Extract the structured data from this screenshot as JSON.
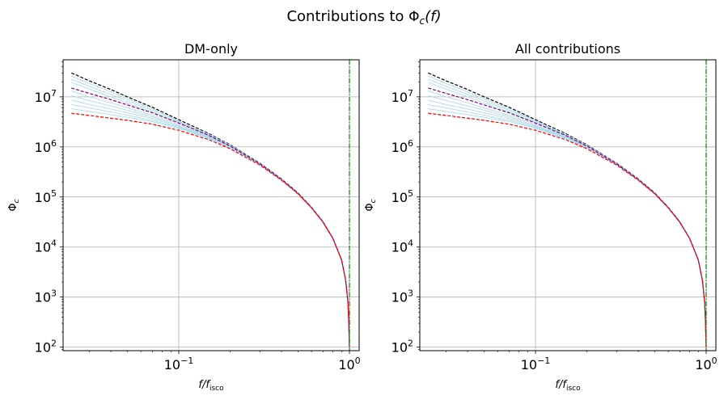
{
  "figure": {
    "title_prefix": "Contributions to ",
    "title_symbol": "Φ",
    "title_sub": "c",
    "title_arg": "(f)"
  },
  "chart_data": [
    {
      "type": "line",
      "title": "DM-only",
      "xlabel": {
        "num": "f",
        "den": "f",
        "den_sub": "isco"
      },
      "ylabel": {
        "symbol": "Φ",
        "sub": "c"
      },
      "xscale": "log",
      "yscale": "log",
      "xlim": [
        0.021,
        1.14
      ],
      "ylim": [
        85,
        55000000
      ],
      "grid": true,
      "x_ticks": [
        {
          "value": 0.1,
          "base": "10",
          "exp": "−1"
        },
        {
          "value": 1,
          "base": "10",
          "exp": "0"
        }
      ],
      "y_ticks": [
        {
          "value": 100,
          "base": "10",
          "exp": "2"
        },
        {
          "value": 1000,
          "base": "10",
          "exp": "3"
        },
        {
          "value": 10000,
          "base": "10",
          "exp": "4"
        },
        {
          "value": 100000,
          "base": "10",
          "exp": "5"
        },
        {
          "value": 1000000,
          "base": "10",
          "exp": "6"
        },
        {
          "value": 10000000,
          "base": "10",
          "exp": "7"
        }
      ],
      "x": [
        0.0235,
        0.03,
        0.04,
        0.05,
        0.07,
        0.1,
        0.15,
        0.2,
        0.3,
        0.4,
        0.5,
        0.6,
        0.7,
        0.8,
        0.9,
        0.95,
        0.98,
        0.99,
        1.0
      ],
      "series": [
        {
          "style": "dashed",
          "color": "#000000",
          "values": [
            30000000,
            20800000,
            14000000,
            10000000,
            6200000,
            3500000,
            1850000,
            1100000,
            470000,
            230000,
            120000,
            62000,
            32000,
            15000,
            5500,
            2200,
            800,
            350,
            100
          ]
        },
        {
          "style": "solid",
          "color": "#add8e6",
          "values": [
            26200000,
            18400000,
            12600000,
            9150000,
            5800000,
            3350000,
            1800000,
            1080000,
            465000,
            228000,
            119000,
            61600,
            31900,
            14950,
            5490,
            2198,
            799,
            350,
            100
          ]
        },
        {
          "style": "solid",
          "color": "#add8e6",
          "values": [
            22600000,
            16100000,
            11200000,
            8300000,
            5400000,
            3200000,
            1750000,
            1060000,
            460000,
            226000,
            118500,
            61400,
            31800,
            14920,
            5485,
            2197,
            799,
            350,
            100
          ]
        },
        {
          "style": "solid",
          "color": "#add8e6",
          "values": [
            19600000,
            14200000,
            10000000,
            7500000,
            5000000,
            3050000,
            1700000,
            1040000,
            455000,
            224000,
            118000,
            61200,
            31700,
            14900,
            5480,
            2196,
            799,
            350,
            100
          ]
        },
        {
          "style": "solid",
          "color": "#add8e6",
          "values": [
            13100000,
            10000000,
            7600000,
            6000000,
            4300000,
            2800000,
            1620000,
            1010000,
            448000,
            222000,
            117200,
            60900,
            31600,
            14870,
            5475,
            2195,
            798,
            350,
            100
          ]
        },
        {
          "style": "solid",
          "color": "#add8e6",
          "values": [
            10600000,
            8400000,
            6600000,
            5400000,
            4000000,
            2650000,
            1580000,
            995000,
            445000,
            221000,
            116800,
            60800,
            31550,
            14860,
            5472,
            2194,
            798,
            350,
            100
          ]
        },
        {
          "style": "solid",
          "color": "#add8e6",
          "values": [
            8600000,
            7000000,
            5700000,
            4800000,
            3700000,
            2550000,
            1540000,
            980000,
            442000,
            220000,
            116500,
            60700,
            31500,
            14850,
            5470,
            2193,
            798,
            350,
            100
          ]
        },
        {
          "style": "solid",
          "color": "#add8e6",
          "values": [
            7000000,
            6000000,
            5000000,
            4300000,
            3400000,
            2450000,
            1510000,
            970000,
            440000,
            219500,
            116300,
            60600,
            31480,
            14840,
            5468,
            2192,
            798,
            350,
            100
          ]
        },
        {
          "style": "solid",
          "color": "#add8e6",
          "values": [
            5800000,
            5100000,
            4400000,
            3900000,
            3200000,
            2350000,
            1480000,
            960000,
            438000,
            219000,
            116100,
            60550,
            31460,
            14835,
            5466,
            2192,
            798,
            350,
            100
          ]
        },
        {
          "style": "dashed",
          "color": "#800080",
          "values": [
            15000000,
            11700000,
            8800000,
            6900000,
            4800000,
            3000000,
            1700000,
            1040000,
            455000,
            224000,
            118000,
            61200,
            31700,
            14900,
            5480,
            2196,
            799,
            350,
            100
          ]
        },
        {
          "style": "dashed",
          "color": "#ff0000",
          "values": [
            4700000,
            4250000,
            3750000,
            3400000,
            2850000,
            2150000,
            1400000,
            920000,
            430000,
            216000,
            115000,
            60200,
            31300,
            14780,
            5450,
            2188,
            797,
            350,
            100
          ]
        }
      ],
      "vline": {
        "x": 1.0,
        "style": "dashdot",
        "color": "#008000"
      }
    },
    {
      "type": "line",
      "title": "All contributions",
      "xlabel": {
        "num": "f",
        "den": "f",
        "den_sub": "isco"
      },
      "ylabel": {
        "symbol": "Φ",
        "sub": "c"
      },
      "xscale": "log",
      "yscale": "log",
      "xlim": [
        0.021,
        1.14
      ],
      "ylim": [
        85,
        55000000
      ],
      "grid": true,
      "x_ticks": [
        {
          "value": 0.1,
          "base": "10",
          "exp": "−1"
        },
        {
          "value": 1,
          "base": "10",
          "exp": "0"
        }
      ],
      "y_ticks": [
        {
          "value": 100,
          "base": "10",
          "exp": "2"
        },
        {
          "value": 1000,
          "base": "10",
          "exp": "3"
        },
        {
          "value": 10000,
          "base": "10",
          "exp": "4"
        },
        {
          "value": 100000,
          "base": "10",
          "exp": "5"
        },
        {
          "value": 1000000,
          "base": "10",
          "exp": "6"
        },
        {
          "value": 10000000,
          "base": "10",
          "exp": "7"
        }
      ],
      "x": [
        0.0235,
        0.03,
        0.04,
        0.05,
        0.07,
        0.1,
        0.15,
        0.2,
        0.3,
        0.4,
        0.5,
        0.6,
        0.7,
        0.8,
        0.9,
        0.95,
        0.98,
        0.99,
        1.0
      ],
      "series": [
        {
          "style": "dashed",
          "color": "#000000",
          "values": [
            30000000,
            20800000,
            14000000,
            10000000,
            6200000,
            3500000,
            1850000,
            1100000,
            470000,
            230000,
            120000,
            62000,
            32000,
            15000,
            5500,
            2200,
            800,
            350,
            100
          ]
        },
        {
          "style": "solid",
          "color": "#add8e6",
          "values": [
            26200000,
            18400000,
            12600000,
            9150000,
            5800000,
            3350000,
            1800000,
            1080000,
            465000,
            228000,
            119000,
            61600,
            31900,
            14950,
            5490,
            2198,
            799,
            350,
            100
          ]
        },
        {
          "style": "solid",
          "color": "#add8e6",
          "values": [
            22600000,
            16100000,
            11200000,
            8300000,
            5400000,
            3200000,
            1750000,
            1060000,
            460000,
            226000,
            118500,
            61400,
            31800,
            14920,
            5485,
            2197,
            799,
            350,
            100
          ]
        },
        {
          "style": "solid",
          "color": "#add8e6",
          "values": [
            19600000,
            14200000,
            10000000,
            7500000,
            5000000,
            3050000,
            1700000,
            1040000,
            455000,
            224000,
            118000,
            61200,
            31700,
            14900,
            5480,
            2196,
            799,
            350,
            100
          ]
        },
        {
          "style": "solid",
          "color": "#add8e6",
          "values": [
            13100000,
            10000000,
            7600000,
            6000000,
            4300000,
            2800000,
            1620000,
            1010000,
            448000,
            222000,
            117200,
            60900,
            31600,
            14870,
            5475,
            2195,
            798,
            350,
            100
          ]
        },
        {
          "style": "solid",
          "color": "#add8e6",
          "values": [
            10600000,
            8400000,
            6600000,
            5400000,
            4000000,
            2650000,
            1580000,
            995000,
            445000,
            221000,
            116800,
            60800,
            31550,
            14860,
            5472,
            2194,
            798,
            350,
            100
          ]
        },
        {
          "style": "solid",
          "color": "#add8e6",
          "values": [
            8600000,
            7000000,
            5700000,
            4800000,
            3700000,
            2550000,
            1540000,
            980000,
            442000,
            220000,
            116500,
            60700,
            31500,
            14850,
            5470,
            2193,
            798,
            350,
            100
          ]
        },
        {
          "style": "solid",
          "color": "#add8e6",
          "values": [
            7000000,
            6000000,
            5000000,
            4300000,
            3400000,
            2450000,
            1510000,
            970000,
            440000,
            219500,
            116300,
            60600,
            31480,
            14840,
            5468,
            2192,
            798,
            350,
            100
          ]
        },
        {
          "style": "solid",
          "color": "#add8e6",
          "values": [
            5800000,
            5100000,
            4400000,
            3900000,
            3200000,
            2350000,
            1480000,
            960000,
            438000,
            219000,
            116100,
            60550,
            31460,
            14835,
            5466,
            2192,
            798,
            350,
            100
          ]
        },
        {
          "style": "dashed",
          "color": "#800080",
          "values": [
            15000000,
            11700000,
            8800000,
            6900000,
            4800000,
            3000000,
            1700000,
            1040000,
            455000,
            224000,
            118000,
            61200,
            31700,
            14900,
            5480,
            2196,
            799,
            350,
            100
          ]
        },
        {
          "style": "dashed",
          "color": "#ff0000",
          "values": [
            4700000,
            4250000,
            3750000,
            3400000,
            2850000,
            2150000,
            1400000,
            920000,
            430000,
            216000,
            115000,
            60200,
            31300,
            14780,
            5450,
            2188,
            797,
            350,
            100
          ]
        }
      ],
      "vline": {
        "x": 1.0,
        "style": "dashdot",
        "color": "#008000"
      }
    }
  ]
}
